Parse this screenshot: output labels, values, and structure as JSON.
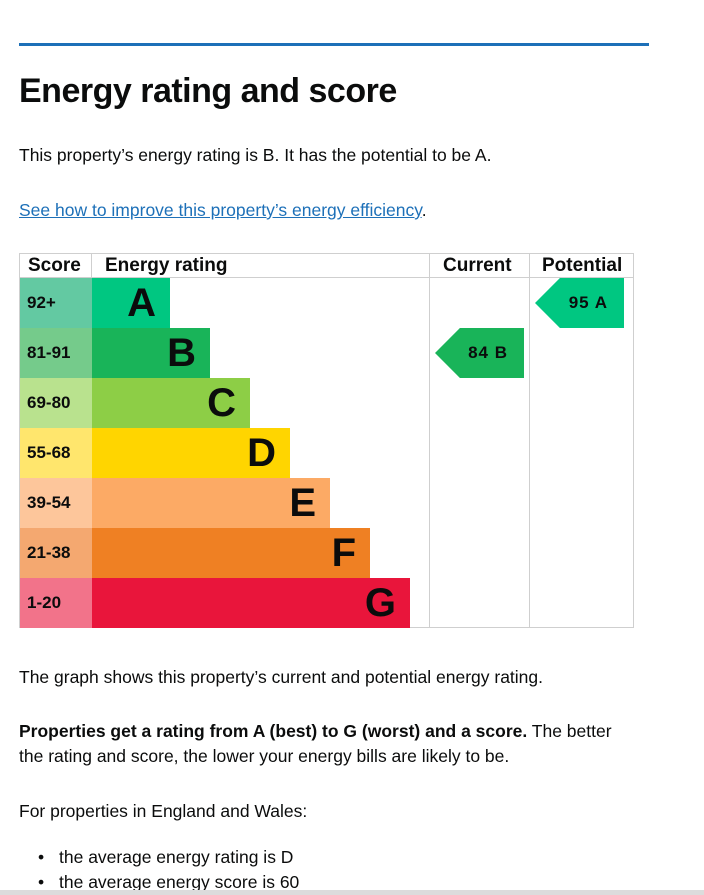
{
  "title": "Energy rating and score",
  "intro": "This property’s energy rating is B. It has the potential to be A.",
  "link": "See how to improve this property’s energy efficiency",
  "link_suffix": ".",
  "chart_data": {
    "type": "bar",
    "headers": {
      "score": "Score",
      "rating": "Energy rating",
      "current": "Current",
      "potential": "Potential"
    },
    "bands": [
      {
        "score": "92+",
        "letter": "A",
        "color": "#00c781",
        "score_bg": "#63c9a2"
      },
      {
        "score": "81-91",
        "letter": "B",
        "color": "#19b459",
        "score_bg": "#75cb8b"
      },
      {
        "score": "69-80",
        "letter": "C",
        "color": "#8dce46",
        "score_bg": "#b9e28e"
      },
      {
        "score": "55-68",
        "letter": "D",
        "color": "#ffd500",
        "score_bg": "#ffe66d"
      },
      {
        "score": "39-54",
        "letter": "E",
        "color": "#fcaa65",
        "score_bg": "#fdc69b"
      },
      {
        "score": "21-38",
        "letter": "F",
        "color": "#ef8023",
        "score_bg": "#f4a870"
      },
      {
        "score": "1-20",
        "letter": "G",
        "color": "#e9153b",
        "score_bg": "#f2738a"
      }
    ],
    "current": {
      "score": "84",
      "letter": "B",
      "band_index": 1,
      "color": "#19b459"
    },
    "potential": {
      "score": "95",
      "letter": "A",
      "band_index": 0,
      "color": "#00c781"
    }
  },
  "graph_note": "The graph shows this property’s current and potential energy rating.",
  "scale_bold": "Properties get a rating from A (best) to G (worst) and a score.",
  "scale_rest": " The better the rating and score, the lower your energy bills are likely to be.",
  "region": "For properties in England and Wales:",
  "averages": [
    "the average energy rating is D",
    "the average energy score is 60"
  ]
}
